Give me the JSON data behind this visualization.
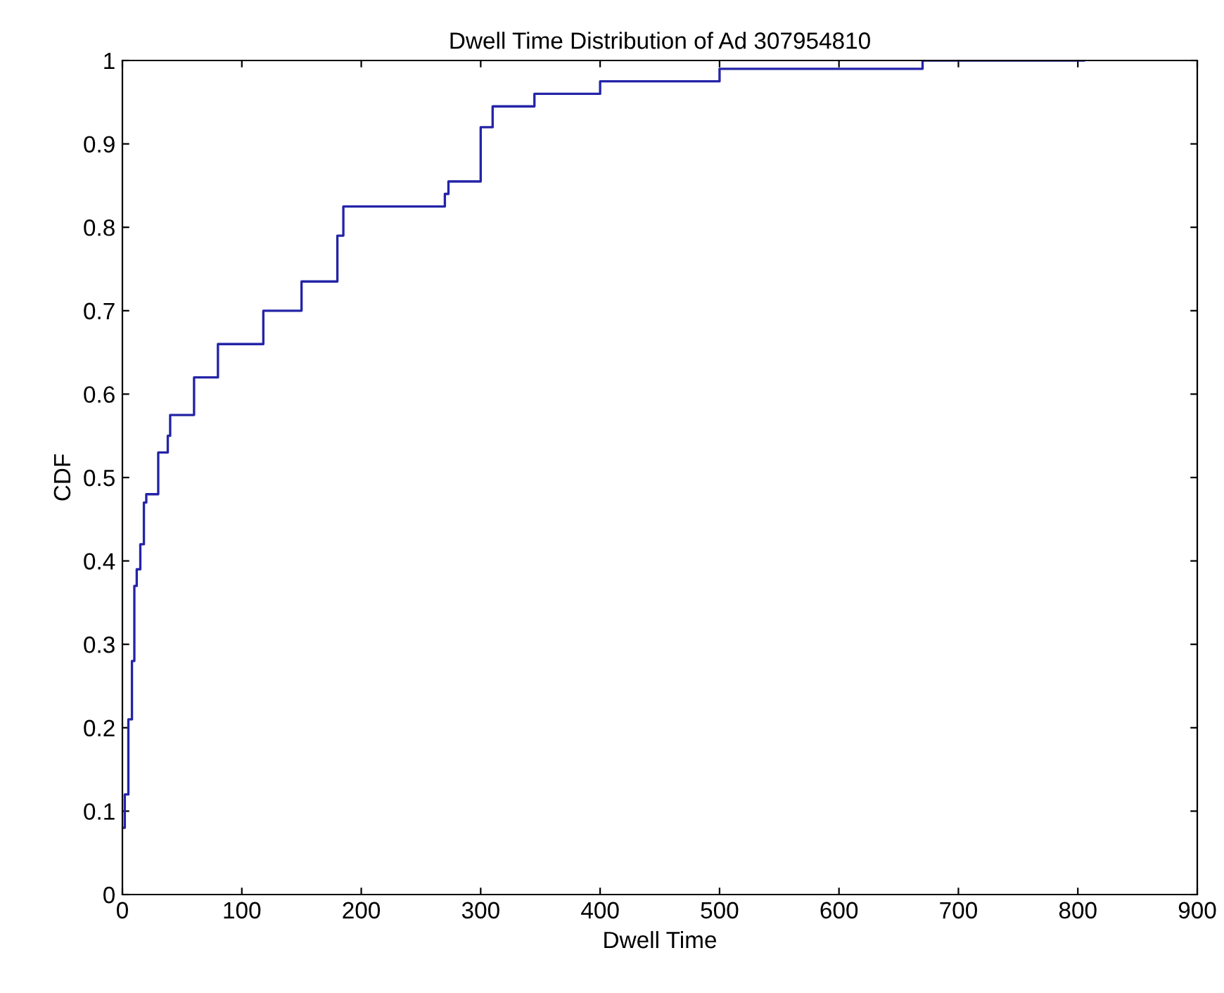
{
  "chart_data": {
    "type": "step",
    "title": "Dwell Time Distribution of Ad 307954810",
    "xlabel": "Dwell Time",
    "ylabel": "CDF",
    "series": [
      {
        "color": "#2424a8",
        "x": [
          0,
          2,
          5,
          8,
          10,
          12,
          15,
          18,
          20,
          30,
          38,
          40,
          60,
          80,
          118,
          150,
          180,
          185,
          270,
          273,
          300,
          310,
          345,
          400,
          500,
          670,
          805
        ],
        "values": [
          0.08,
          0.12,
          0.21,
          0.28,
          0.37,
          0.39,
          0.42,
          0.47,
          0.48,
          0.53,
          0.55,
          0.575,
          0.62,
          0.66,
          0.7,
          0.735,
          0.79,
          0.825,
          0.84,
          0.855,
          0.92,
          0.945,
          0.96,
          0.975,
          0.99,
          1.0,
          1.0
        ]
      }
    ],
    "xlim": [
      0,
      900
    ],
    "xticks": [
      0,
      100,
      200,
      300,
      400,
      500,
      600,
      700,
      800,
      900
    ],
    "ylim": [
      0,
      1
    ],
    "yticks": [
      0,
      0.1,
      0.2,
      0.3,
      0.4,
      0.5,
      0.6,
      0.7,
      0.8,
      0.9,
      1
    ],
    "grid": false,
    "legend": false
  }
}
